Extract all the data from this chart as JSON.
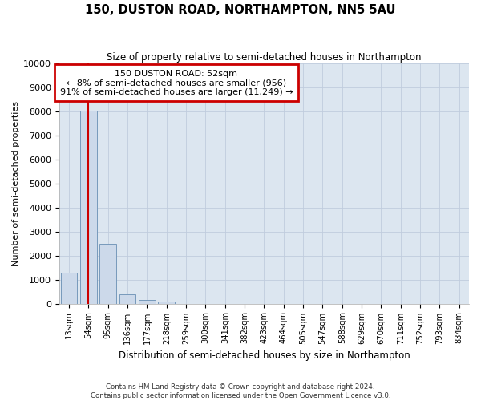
{
  "title": "150, DUSTON ROAD, NORTHAMPTON, NN5 5AU",
  "subtitle": "Size of property relative to semi-detached houses in Northampton",
  "xlabel": "Distribution of semi-detached houses by size in Northampton",
  "ylabel": "Number of semi-detached properties",
  "footer_line1": "Contains HM Land Registry data © Crown copyright and database right 2024.",
  "footer_line2": "Contains public sector information licensed under the Open Government Licence v3.0.",
  "bar_labels": [
    "13sqm",
    "54sqm",
    "95sqm",
    "136sqm",
    "177sqm",
    "218sqm",
    "259sqm",
    "300sqm",
    "341sqm",
    "382sqm",
    "423sqm",
    "464sqm",
    "505sqm",
    "547sqm",
    "588sqm",
    "629sqm",
    "670sqm",
    "711sqm",
    "752sqm",
    "793sqm",
    "834sqm"
  ],
  "bar_values": [
    1300,
    8050,
    2500,
    400,
    160,
    100,
    0,
    0,
    0,
    0,
    0,
    0,
    0,
    0,
    0,
    0,
    0,
    0,
    0,
    0,
    0
  ],
  "bar_color": "#ccd9ea",
  "bar_edge_color": "#7799bb",
  "ylim": [
    0,
    10000
  ],
  "yticks": [
    0,
    1000,
    2000,
    3000,
    4000,
    5000,
    6000,
    7000,
    8000,
    9000,
    10000
  ],
  "vline_x": 1.0,
  "vline_color": "#cc0000",
  "ann_title": "150 DUSTON ROAD: 52sqm",
  "ann_line2": "← 8% of semi-detached houses are smaller (956)",
  "ann_line3": "91% of semi-detached houses are larger (11,249) →",
  "annotation_box_color": "#ffffff",
  "annotation_border_color": "#cc0000",
  "grid_color": "#c0ccdd",
  "background_color": "#ffffff",
  "plot_bg_color": "#dce6f0"
}
